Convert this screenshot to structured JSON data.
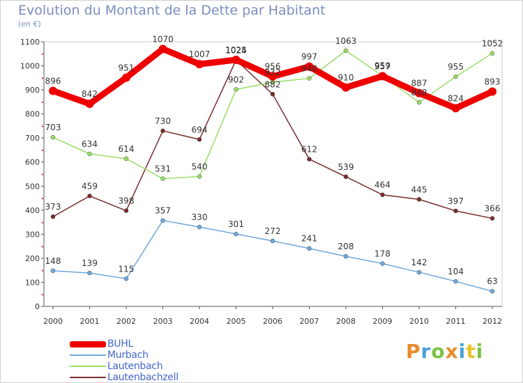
{
  "header": {
    "title": "Evolution du Montant de la Dette par Habitant",
    "subtitle": "(en €)"
  },
  "logo": {
    "text": "Proxiti",
    "letters": [
      {
        "ch": "P",
        "color": "#e8892a"
      },
      {
        "ch": "r",
        "color": "#4aa0d8"
      },
      {
        "ch": "o",
        "color": "#7cc243"
      },
      {
        "ch": "x",
        "color": "#e8892a"
      },
      {
        "ch": "i",
        "color": "#4aa0d8"
      },
      {
        "ch": "t",
        "color": "#e8c22a"
      },
      {
        "ch": "i",
        "color": "#7cc243"
      }
    ]
  },
  "chart_data": {
    "type": "line",
    "title": "Evolution du Montant de la Dette par Habitant",
    "subtitle": "(en €)",
    "xlabel": "",
    "ylabel": "",
    "x": [
      "2000",
      "2001",
      "2002",
      "2003",
      "2004",
      "2005",
      "2006",
      "2007",
      "2008",
      "2009",
      "2010",
      "2011",
      "2012"
    ],
    "ylim": [
      0,
      1100
    ],
    "yticks": [
      0,
      100,
      200,
      300,
      400,
      500,
      600,
      700,
      800,
      900,
      1000,
      1100
    ],
    "grid": false,
    "legend_position": "bottom-left",
    "series": [
      {
        "name": "BUHL",
        "color": "#ee0000",
        "width": 9,
        "values": [
          896,
          842,
          951,
          1070,
          1007,
          1025,
          956,
          997,
          910,
          957,
          887,
          824,
          893
        ]
      },
      {
        "name": "Murbach",
        "color": "#6fa8dc",
        "width": 1.5,
        "values": [
          148,
          139,
          115,
          357,
          330,
          301,
          272,
          241,
          208,
          178,
          142,
          104,
          63
        ]
      },
      {
        "name": "Lautenbach",
        "color": "#99dd66",
        "width": 1.5,
        "values": [
          703,
          634,
          614,
          531,
          540,
          902,
          932,
          948,
          1063,
          959,
          848,
          955,
          1052
        ]
      },
      {
        "name": "Lautenbachzell",
        "color": "#7a2a2a",
        "width": 1.5,
        "values": [
          373,
          459,
          398,
          730,
          694,
          1024,
          882,
          612,
          539,
          464,
          445,
          397,
          366
        ]
      }
    ]
  }
}
